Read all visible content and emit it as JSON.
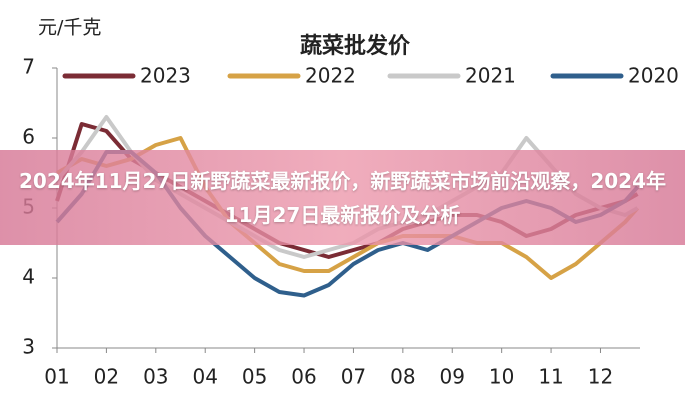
{
  "overlay_title": "2024年11月27日新野蔬菜最新报价，新野蔬菜市场前沿观察，2024年11月27日最新报价及分析",
  "chart_data": {
    "type": "line",
    "title": "蔬菜批发价",
    "y_label": "元/千克",
    "x": [
      1,
      1.5,
      2,
      2.5,
      3,
      3.5,
      4,
      4.5,
      5,
      5.5,
      6,
      6.5,
      7,
      7.5,
      8,
      8.5,
      9,
      9.5,
      10,
      10.5,
      11,
      11.5,
      12,
      12.5,
      12.75
    ],
    "xlim": [
      1,
      12.8
    ],
    "xticks": [
      {
        "value": 1,
        "label": "01"
      },
      {
        "value": 2,
        "label": "02"
      },
      {
        "value": 3,
        "label": "03"
      },
      {
        "value": 4,
        "label": "04"
      },
      {
        "value": 5,
        "label": "05"
      },
      {
        "value": 6,
        "label": "06"
      },
      {
        "value": 7,
        "label": "07"
      },
      {
        "value": 8,
        "label": "08"
      },
      {
        "value": 9,
        "label": "09"
      },
      {
        "value": 10,
        "label": "10"
      },
      {
        "value": 11,
        "label": "11"
      },
      {
        "value": 12,
        "label": "12"
      }
    ],
    "ylim": [
      3,
      7
    ],
    "yticks": [
      3,
      4,
      5,
      6,
      7
    ],
    "grid": false,
    "legend": "top",
    "series": [
      {
        "name": "2023",
        "color": "#7b2c35",
        "values": [
          5.1,
          6.2,
          6.1,
          5.7,
          5.5,
          5.3,
          5.1,
          4.9,
          4.7,
          4.5,
          4.4,
          4.3,
          4.4,
          4.5,
          4.7,
          4.8,
          4.9,
          4.9,
          4.8,
          4.6,
          4.7,
          4.9,
          5.0,
          5.1,
          5.2
        ]
      },
      {
        "name": "2022",
        "color": "#d6a246",
        "values": [
          5.5,
          5.7,
          5.6,
          5.7,
          5.9,
          6.0,
          5.3,
          4.8,
          4.5,
          4.2,
          4.1,
          4.1,
          4.3,
          4.5,
          4.6,
          4.6,
          4.6,
          4.5,
          4.5,
          4.3,
          4.0,
          4.2,
          4.5,
          4.8,
          5.0
        ]
      },
      {
        "name": "2021",
        "color": "#c9c9c9",
        "values": [
          5.4,
          5.8,
          6.3,
          5.8,
          5.4,
          5.2,
          5.0,
          4.8,
          4.6,
          4.4,
          4.3,
          4.4,
          4.5,
          4.7,
          4.8,
          4.9,
          5.1,
          5.3,
          5.5,
          6.0,
          5.6,
          5.2,
          5.0,
          4.9,
          5.0
        ]
      },
      {
        "name": "2020",
        "color": "#2f5f8c",
        "values": [
          4.8,
          5.2,
          5.8,
          5.8,
          5.5,
          5.0,
          4.6,
          4.3,
          4.0,
          3.8,
          3.75,
          3.9,
          4.2,
          4.4,
          4.5,
          4.4,
          4.6,
          4.8,
          5.0,
          5.1,
          5.0,
          4.8,
          4.9,
          5.1,
          5.3
        ]
      }
    ]
  }
}
